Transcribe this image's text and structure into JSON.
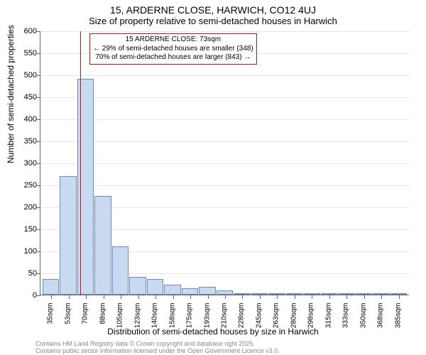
{
  "title_line1": "15, ARDERNE CLOSE, HARWICH, CO12 4UJ",
  "title_line2": "Size of property relative to semi-detached houses in Harwich",
  "ylabel": "Number of semi-detached properties",
  "xlabel": "Distribution of semi-detached houses by size in Harwich",
  "footer_line1": "Contains HM Land Registry data © Crown copyright and database right 2025.",
  "footer_line2": "Contains public sector information licensed under the Open Government Licence v3.0.",
  "chart": {
    "type": "histogram",
    "ylim": [
      0,
      600
    ],
    "ytick_step": 50,
    "background_color": "#ffffff",
    "grid_color": "#e6e6e6",
    "axis_color": "#666666",
    "bar_fill": "#c9d9f0",
    "bar_border": "#6a8bc4",
    "subject_line_color": "#d01010",
    "subject_value_x": 73,
    "x_start": 35,
    "x_step": 17.5,
    "x_label_step": 2,
    "bars": [
      35,
      270,
      490,
      225,
      110,
      40,
      35,
      22,
      15,
      18,
      10,
      4,
      4,
      4,
      2,
      2,
      2,
      2,
      2,
      2,
      2
    ],
    "xtick_labels": [
      "35sqm",
      "53sqm",
      "70sqm",
      "88sqm",
      "105sqm",
      "123sqm",
      "140sqm",
      "158sqm",
      "175sqm",
      "193sqm",
      "210sqm",
      "228sqm",
      "245sqm",
      "263sqm",
      "280sqm",
      "298sqm",
      "315sqm",
      "333sqm",
      "350sqm",
      "368sqm",
      "385sqm"
    ]
  },
  "callout": {
    "line1": "15 ARDERNE CLOSE: 73sqm",
    "line2": "← 29% of semi-detached houses are smaller (348)",
    "line3": "70% of semi-detached houses are larger (843) →"
  },
  "styling": {
    "title_fontsize": 14,
    "subtitle_fontsize": 13,
    "axis_label_fontsize": 12,
    "tick_fontsize": 11,
    "xtick_fontsize": 10,
    "callout_fontsize": 10,
    "footer_fontsize": 9,
    "footer_color": "#888888",
    "callout_border": "#d01010"
  }
}
